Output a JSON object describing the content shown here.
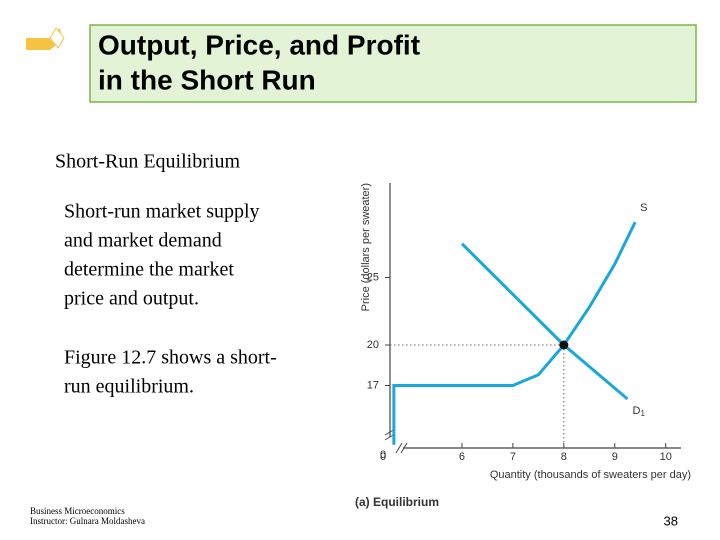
{
  "slide": {
    "title": [
      "Output, Price, and Profit",
      "in the Short Run"
    ],
    "heading": "Short-Run Equilibrium",
    "paragraphs": [
      [
        "Short-run market supply",
        "and market demand",
        "determine the market",
        "price and output."
      ],
      [
        "Figure 12.7 shows a short-",
        "run equilibrium."
      ]
    ],
    "footer": [
      "Business Microeconomics",
      "Instructor: Gulnara Moldasheva"
    ],
    "page_number": "38"
  },
  "chart_data": {
    "type": "line",
    "caption": "(a) Equilibrium",
    "x_label": "Quantity (thousands of sweaters per day)",
    "y_label": "Price (dollars per sweater)",
    "xlim": [
      0,
      10.3
    ],
    "ylim": [
      0,
      32
    ],
    "x_break": [
      0.5,
      5.5
    ],
    "y_break": [
      1,
      16
    ],
    "xticks": [
      0,
      6,
      7,
      8,
      9,
      10
    ],
    "yticks": [
      0,
      17,
      20,
      25
    ],
    "grid": false,
    "series": [
      {
        "name": "S",
        "color": "#1aa8dc",
        "x": [
          0.6,
          0.6,
          7,
          7.5,
          8,
          8.5,
          9,
          9.4
        ],
        "values": [
          2,
          17,
          17,
          17.8,
          20,
          22.8,
          26,
          29.1
        ]
      },
      {
        "name": "D",
        "subscript": "1",
        "color": "#1aa8dc",
        "x": [
          6,
          8,
          9.25
        ],
        "values": [
          27.5,
          20,
          16
        ]
      }
    ],
    "equilibrium": {
      "x": 8,
      "y": 20
    }
  }
}
